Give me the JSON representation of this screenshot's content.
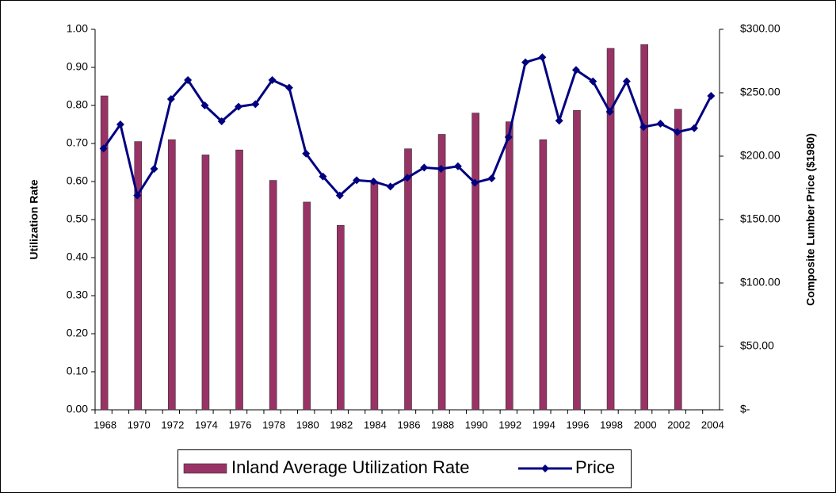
{
  "chart_data": {
    "type": "bar-line",
    "categories": [
      "1968",
      null,
      "1970",
      null,
      "1972",
      null,
      "1974",
      null,
      "1976",
      null,
      "1978",
      null,
      "1980",
      null,
      "1982",
      null,
      "1984",
      null,
      "1986",
      null,
      "1988",
      null,
      "1990",
      null,
      "1992",
      null,
      "1994",
      null,
      "1996",
      null,
      "1998",
      null,
      "2000",
      null,
      "2002",
      null,
      "2004"
    ],
    "series": [
      {
        "name": "Inland  Average Utilization Rate",
        "type": "bar",
        "color": "#993366",
        "values": [
          0.825,
          null,
          0.705,
          null,
          0.71,
          null,
          0.67,
          null,
          0.683,
          null,
          0.603,
          null,
          0.546,
          null,
          0.485,
          null,
          0.6,
          null,
          0.686,
          null,
          0.724,
          null,
          0.78,
          null,
          0.757,
          null,
          0.71,
          null,
          0.787,
          null,
          0.95,
          null,
          0.96,
          null,
          0.79,
          null,
          null
        ]
      },
      {
        "name": "Price",
        "type": "line",
        "axis": "y2",
        "color": "#000080",
        "values": [
          206,
          225,
          169,
          190,
          245,
          260,
          240,
          227.5,
          239,
          241,
          260,
          254,
          202,
          184,
          169,
          181,
          180,
          176,
          183,
          191,
          190,
          192,
          179,
          182.5,
          215,
          274,
          278,
          228,
          268,
          259,
          235,
          259,
          223,
          225.6,
          219,
          222,
          247.5
        ]
      }
    ],
    "ylabel": "Utilization Rate",
    "y2label": "Composite Lumber Price ($1980)",
    "ylim": [
      0,
      1
    ],
    "yticks": [
      {
        "value": 0,
        "label": "0.00"
      },
      {
        "value": 0.1,
        "label": "0.10"
      },
      {
        "value": 0.2,
        "label": "0.20"
      },
      {
        "value": 0.3,
        "label": "0.30"
      },
      {
        "value": 0.4,
        "label": "0.40"
      },
      {
        "value": 0.5,
        "label": "0.50"
      },
      {
        "value": 0.6,
        "label": "0.60"
      },
      {
        "value": 0.7,
        "label": "0.70"
      },
      {
        "value": 0.8,
        "label": "0.80"
      },
      {
        "value": 0.9,
        "label": "0.90"
      },
      {
        "value": 1,
        "label": "1.00"
      }
    ],
    "y2lim": [
      0,
      300
    ],
    "y2ticks": [
      {
        "value": 0,
        "label": "$-"
      },
      {
        "value": 50,
        "label": "$50.00"
      },
      {
        "value": 100,
        "label": "$100.00"
      },
      {
        "value": 150,
        "label": "$150.00"
      },
      {
        "value": 200,
        "label": "$200.00"
      },
      {
        "value": 250,
        "label": "$250.00"
      },
      {
        "value": 300,
        "label": "$300.00"
      }
    ],
    "legend": "bottom"
  }
}
